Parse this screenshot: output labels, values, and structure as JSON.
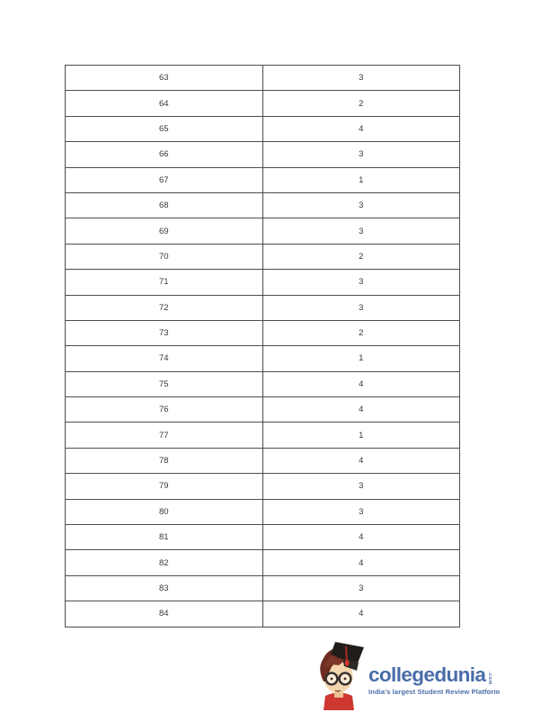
{
  "table": {
    "rows": [
      {
        "question": "63",
        "answer": "3"
      },
      {
        "question": "64",
        "answer": "2"
      },
      {
        "question": "65",
        "answer": "4"
      },
      {
        "question": "66",
        "answer": "3"
      },
      {
        "question": "67",
        "answer": "1"
      },
      {
        "question": "68",
        "answer": "3"
      },
      {
        "question": "69",
        "answer": "3"
      },
      {
        "question": "70",
        "answer": "2"
      },
      {
        "question": "71",
        "answer": "3"
      },
      {
        "question": "72",
        "answer": "3"
      },
      {
        "question": "73",
        "answer": "2"
      },
      {
        "question": "74",
        "answer": "1"
      },
      {
        "question": "75",
        "answer": "4"
      },
      {
        "question": "76",
        "answer": "4"
      },
      {
        "question": "77",
        "answer": "1"
      },
      {
        "question": "78",
        "answer": "4"
      },
      {
        "question": "79",
        "answer": "3"
      },
      {
        "question": "80",
        "answer": "3"
      },
      {
        "question": "81",
        "answer": "4"
      },
      {
        "question": "82",
        "answer": "4"
      },
      {
        "question": "83",
        "answer": "3"
      },
      {
        "question": "84",
        "answer": "4"
      }
    ]
  },
  "logo": {
    "brand": "collegedunia",
    "tld": ".com",
    "tagline": "India's largest Student Review Platform",
    "brand_color": "#4a6da9",
    "mascot_colors": {
      "hair": "#6d2c21",
      "cap": "#201d1b",
      "tassel": "#d8382e",
      "skin": "#f4d6ae",
      "shirt": "#ce382e",
      "glasses": "#35302d"
    }
  }
}
